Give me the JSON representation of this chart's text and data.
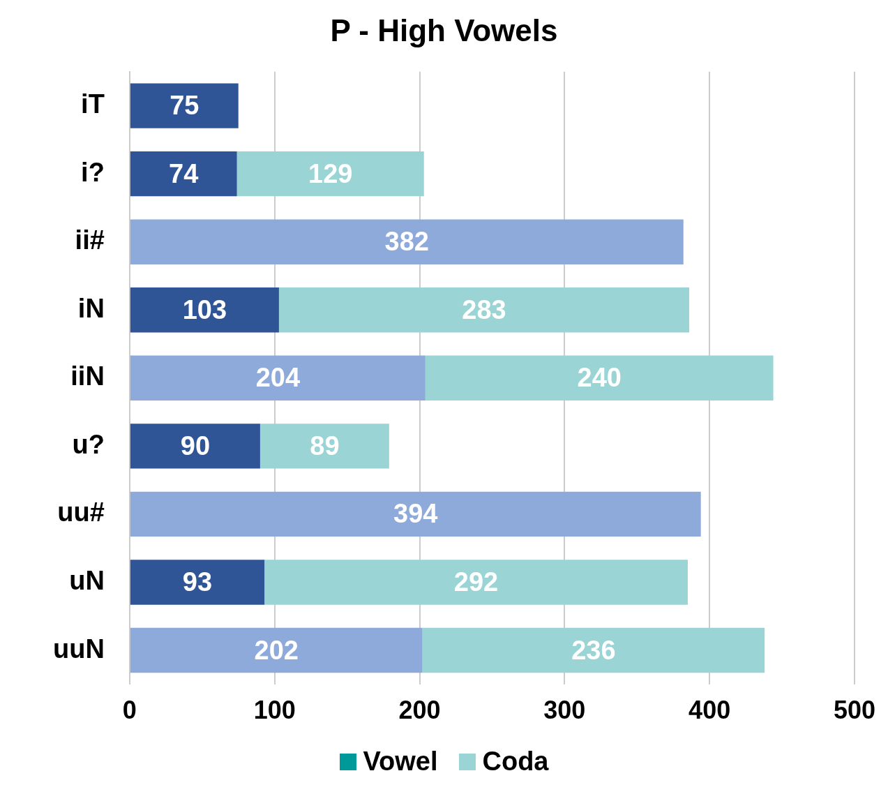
{
  "chart_data": {
    "type": "bar",
    "title": "P - High Vowels",
    "orientation": "horizontal",
    "stacked": true,
    "categories": [
      "iT",
      "i?",
      "ii#",
      "iN",
      "iiN",
      "u?",
      "uu#",
      "uN",
      "uuN"
    ],
    "series": [
      {
        "name": "Vowel",
        "color": "#009999",
        "colors": [
          "#2f5597",
          "#2f5597",
          "#8eaadb",
          "#2f5597",
          "#8eaadb",
          "#2f5597",
          "#8eaadb",
          "#2f5597",
          "#8eaadb"
        ],
        "values": [
          75,
          74,
          382,
          103,
          204,
          90,
          394,
          93,
          202
        ]
      },
      {
        "name": "Coda",
        "color": "#9bd4d4",
        "values": [
          null,
          129,
          null,
          283,
          240,
          89,
          null,
          292,
          236
        ]
      }
    ],
    "xlim": [
      0,
      500
    ],
    "xticks": [
      0,
      100,
      200,
      300,
      400,
      500
    ],
    "grid": "x",
    "legend": "bottom",
    "data_labels": true
  }
}
